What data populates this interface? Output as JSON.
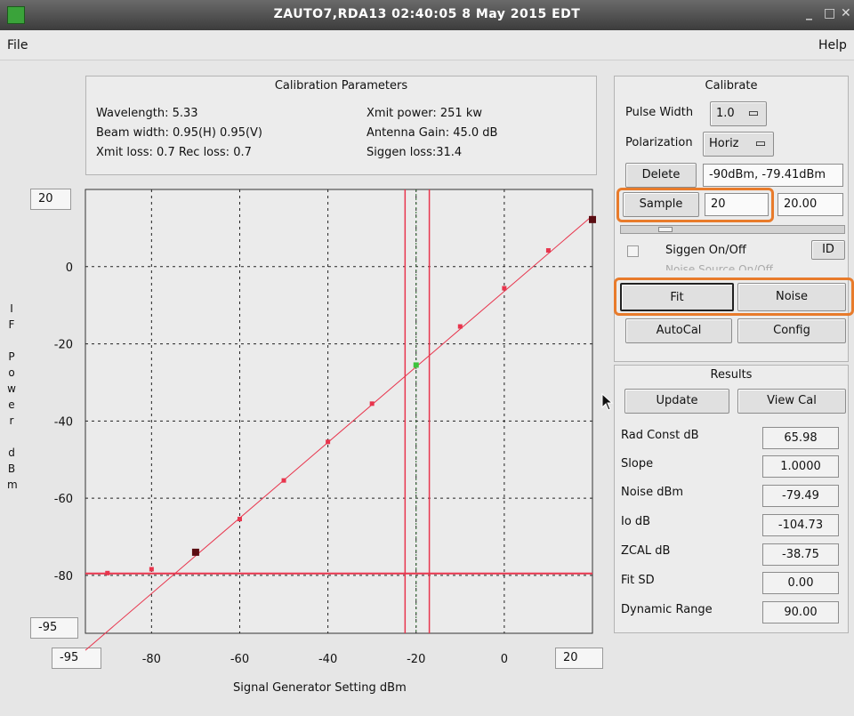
{
  "window": {
    "title": "ZAUTO7,RDA13     02:40:05  8 May 2015 EDT"
  },
  "menu": {
    "file": "File",
    "help": "Help"
  },
  "cal_params": {
    "title": "Calibration Parameters",
    "wavelength": "Wavelength:  5.33",
    "beam_width": "Beam width: 0.95(H)  0.95(V)",
    "losses": "Xmit loss: 0.7  Rec loss: 0.7",
    "xmit_power": "Xmit power: 251 kw",
    "antenna_gain": "Antenna Gain: 45.0 dB",
    "siggen_loss": "Siggen loss:31.4"
  },
  "chart_controls": {
    "y_max": "20",
    "y_min": "-95",
    "x_min": "-95",
    "x_max": "20"
  },
  "chart_data": {
    "type": "scatter",
    "xlabel": "Signal Generator Setting dBm",
    "ylabel": "IF Power dBm",
    "xlim": [
      -95,
      20
    ],
    "ylim": [
      -95,
      20
    ],
    "x_ticks": [
      -80,
      -60,
      -40,
      -20,
      0,
      20
    ],
    "y_ticks": [
      20,
      0,
      -20,
      -40,
      -60,
      -80
    ],
    "grid": true,
    "fit_line": {
      "x": [
        -95,
        20
      ],
      "y": [
        -99.4,
        13.2
      ]
    },
    "noise_level": -79.49,
    "vertical_markers": [
      -22.5,
      -20,
      -17
    ],
    "points": [
      {
        "x": -90,
        "y": -79.4,
        "kind": "sample"
      },
      {
        "x": -80,
        "y": -78.4,
        "kind": "sample"
      },
      {
        "x": -70,
        "y": -74,
        "kind": "selected"
      },
      {
        "x": -60,
        "y": -65.4,
        "kind": "sample"
      },
      {
        "x": -50,
        "y": -55.4,
        "kind": "sample"
      },
      {
        "x": -40,
        "y": -45.4,
        "kind": "sample"
      },
      {
        "x": -30,
        "y": -35.5,
        "kind": "sample"
      },
      {
        "x": -20,
        "y": -25.5,
        "kind": "current"
      },
      {
        "x": -10,
        "y": -15.5,
        "kind": "sample"
      },
      {
        "x": 0,
        "y": -5.6,
        "kind": "sample"
      },
      {
        "x": 10,
        "y": 4.2,
        "kind": "sample"
      },
      {
        "x": 20,
        "y": 12.2,
        "kind": "selected"
      }
    ],
    "colors": {
      "line": "#e8354d",
      "point": "#e8354d",
      "selected": "#5a0d12",
      "current": "#3cc43c",
      "grid": "#222222"
    }
  },
  "y_axis_label_letters": [
    "I",
    "F",
    "",
    "P",
    "o",
    "w",
    "e",
    "r",
    "",
    "d",
    "B",
    "m"
  ],
  "calibrate": {
    "title": "Calibrate",
    "pulse_width_label": "Pulse Width",
    "pulse_width_value": "1.0",
    "polarization_label": "Polarization",
    "polarization_value": "Horiz",
    "delete_button": "Delete",
    "delete_value": "-90dBm, -79.41dBm",
    "sample_button": "Sample",
    "sample_input": "20",
    "sample_value": "20.00",
    "siggen_label": "Siggen On/Off",
    "id_button": "ID",
    "noise_source_label": "Noise Source On/Off",
    "fit_button": "Fit",
    "noise_button": "Noise",
    "autocal_button": "AutoCal",
    "config_button": "Config"
  },
  "results": {
    "title": "Results",
    "update_button": "Update",
    "view_cal_button": "View Cal",
    "rows": [
      {
        "label": "Rad Const dB",
        "value": "65.98"
      },
      {
        "label": "Slope",
        "value": "1.0000"
      },
      {
        "label": "Noise dBm",
        "value": "-79.49"
      },
      {
        "label": "Io dB",
        "value": "-104.73"
      },
      {
        "label": "ZCAL dB",
        "value": "-38.75"
      },
      {
        "label": "Fit SD",
        "value": "0.00"
      },
      {
        "label": "Dynamic Range",
        "value": "90.00"
      }
    ]
  }
}
